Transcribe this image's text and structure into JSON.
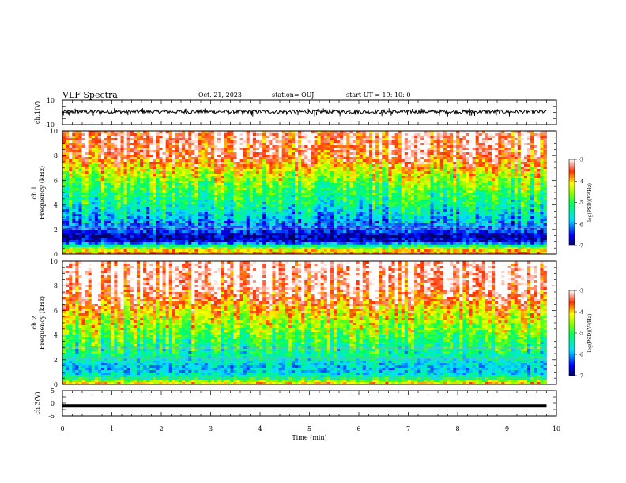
{
  "header": {
    "title": "VLF Spectra",
    "date": "Oct. 21, 2023",
    "station": "station= OUJ",
    "start": "start  UT  =   19: 10: 0"
  },
  "chart_data": [
    {
      "type": "line",
      "name": "ch1-waveform",
      "ylabel": "ch.1(V)",
      "ylim": [
        -10,
        10
      ],
      "y_ticks": [
        "10",
        "-10"
      ],
      "xlim": [
        0,
        10
      ],
      "baseline": 0.5,
      "noise_band": [
        -1.5,
        1.5
      ],
      "spikes_range": [
        -3.5,
        3.5
      ],
      "data_end_x": 9.8
    },
    {
      "type": "heatmap",
      "name": "ch1-spectrogram",
      "ylabel_line1": "ch.1",
      "ylabel_line2": "Frequency  (kHz)",
      "ylim": [
        0,
        10
      ],
      "y_ticks": [
        "0",
        "2",
        "4",
        "6",
        "8",
        "10"
      ],
      "xlim": [
        0,
        10
      ],
      "data_end_x": 9.8,
      "colorbar": {
        "label": "log(PSD)(V²/Hz)",
        "range": [
          -7,
          -3
        ],
        "ticks": [
          "-3",
          "-4",
          "-5",
          "-6",
          "-7"
        ]
      },
      "profile_freq_khz": [
        0,
        0.5,
        1,
        1.5,
        2,
        2.5,
        3,
        3.5,
        4,
        5,
        6,
        7,
        8,
        10
      ],
      "profile_log_psd": [
        -3.5,
        -4.5,
        -6.6,
        -6.8,
        -6.2,
        -6.0,
        -5.8,
        -5.6,
        -5.3,
        -5.0,
        -4.6,
        -4.0,
        -3.4,
        -3.2
      ]
    },
    {
      "type": "heatmap",
      "name": "ch2-spectrogram",
      "ylabel_line1": "ch.2",
      "ylabel_line2": "Frequency  (kHz)",
      "ylim": [
        0,
        10
      ],
      "y_ticks": [
        "0",
        "2",
        "4",
        "6",
        "8",
        "10"
      ],
      "xlim": [
        0,
        10
      ],
      "data_end_x": 9.8,
      "colorbar": {
        "label": "log(PSD)(V²/Hz)",
        "range": [
          -7,
          -3
        ],
        "ticks": [
          "-3",
          "-4",
          "-5",
          "-6",
          "-7"
        ]
      },
      "profile_freq_khz": [
        0,
        0.5,
        1,
        1.5,
        2,
        2.5,
        3,
        3.5,
        4,
        5,
        6,
        7,
        8,
        10
      ],
      "profile_log_psd": [
        -3.8,
        -5.2,
        -5.8,
        -5.8,
        -5.5,
        -5.3,
        -5.2,
        -5.0,
        -4.8,
        -4.4,
        -4.0,
        -3.5,
        -3.1,
        -3.0
      ]
    },
    {
      "type": "line",
      "name": "ch3-waveform",
      "ylabel": "ch.3(V)",
      "ylim": [
        -5,
        5
      ],
      "y_ticks": [
        "5",
        "0",
        "-5"
      ],
      "xlim": [
        0,
        10
      ],
      "value": -1,
      "data_end_x": 9.8,
      "xlabel": "Time  (min)",
      "x_ticks": [
        "0",
        "1",
        "2",
        "3",
        "4",
        "5",
        "6",
        "7",
        "8",
        "9",
        "10"
      ]
    }
  ]
}
